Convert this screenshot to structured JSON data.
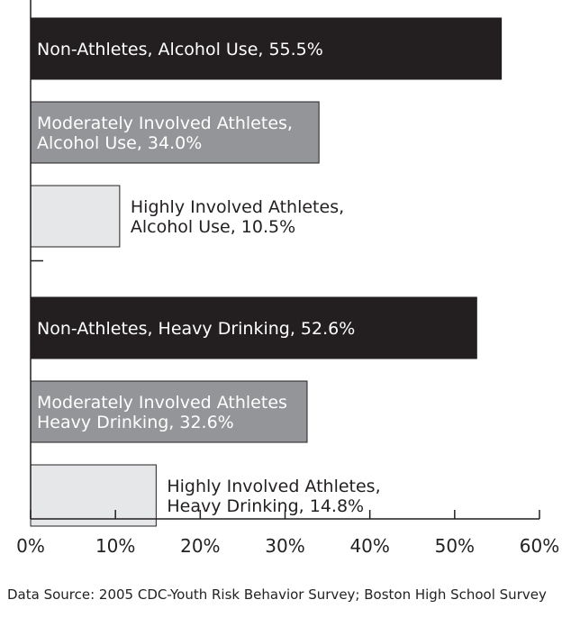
{
  "chart_data": {
    "type": "bar",
    "orientation": "horizontal",
    "xlim": [
      0,
      60
    ],
    "x_ticks": [
      "0%",
      "10%",
      "20%",
      "30%",
      "40%",
      "50%",
      "60%"
    ],
    "grid": false,
    "groups": [
      {
        "bars": [
          {
            "label_lines": [
              "Non-Athletes, Alcohol Use, 55.5%"
            ],
            "value": 55.5,
            "color": "#231f20",
            "text_color": "#ffffff",
            "label_position": "inside"
          },
          {
            "label_lines": [
              "Moderately Involved Athletes,",
              "Alcohol Use, 34.0%"
            ],
            "value": 34.0,
            "color": "#939598",
            "text_color": "#ffffff",
            "label_position": "inside"
          },
          {
            "label_lines": [
              "Highly Involved Athletes,",
              "Alcohol Use, 10.5%"
            ],
            "value": 10.5,
            "color": "#e6e7e8",
            "text_color": "#231f20",
            "label_position": "outside"
          }
        ]
      },
      {
        "bars": [
          {
            "label_lines": [
              "Non-Athletes, Heavy Drinking, 52.6%"
            ],
            "value": 52.6,
            "color": "#231f20",
            "text_color": "#ffffff",
            "label_position": "inside"
          },
          {
            "label_lines": [
              "Moderately Involved Athletes",
              "Heavy Drinking, 32.6%"
            ],
            "value": 32.6,
            "color": "#939598",
            "text_color": "#ffffff",
            "label_position": "inside"
          },
          {
            "label_lines": [
              "Highly Involved Athletes,",
              "Heavy Drinking, 14.8%"
            ],
            "value": 14.8,
            "color": "#e6e7e8",
            "text_color": "#231f20",
            "label_position": "outside"
          }
        ]
      }
    ]
  },
  "source_note": "Data Source: 2005 CDC-Youth Risk Behavior Survey; Boston High School Survey"
}
